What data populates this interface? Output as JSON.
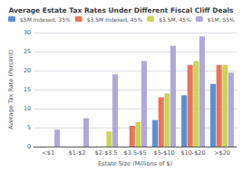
{
  "chart_data": {
    "type": "bar",
    "title": "Average Estate Tax Rates Under Different Fiscal Cliff Deals",
    "xlabel": "Estate Size (Millions of $)",
    "ylabel": "Average Tax Rate (Percent)",
    "categories": [
      "<$1",
      "$1-$2",
      "$2-$3.5",
      "$3.5-$5",
      "$5-$10",
      "$10-$20",
      ">$20"
    ],
    "series": [
      {
        "name": "$5M Indexed, 35%",
        "color": "#5B8FD4",
        "values": [
          0,
          0,
          0,
          0,
          7.0,
          13.5,
          16.5
        ]
      },
      {
        "name": "$3.5M Indexed, 45%",
        "color": "#E8745A",
        "values": [
          0,
          0,
          0,
          5.5,
          13.0,
          21.5,
          21.5
        ]
      },
      {
        "name": "$3.5M, 45%",
        "color": "#C8D45A",
        "values": [
          0,
          0,
          4.0,
          6.5,
          14.0,
          22.5,
          21.5
        ]
      },
      {
        "name": "$1M, 55%",
        "color": "#B0A8D8",
        "values": [
          4.5,
          7.5,
          19.0,
          22.5,
          26.5,
          29.0,
          19.5
        ]
      }
    ],
    "ylim": [
      0,
      30
    ],
    "yticks": [
      0,
      5,
      10,
      15,
      20,
      25,
      30
    ],
    "grid": true,
    "legend": "upper left"
  }
}
